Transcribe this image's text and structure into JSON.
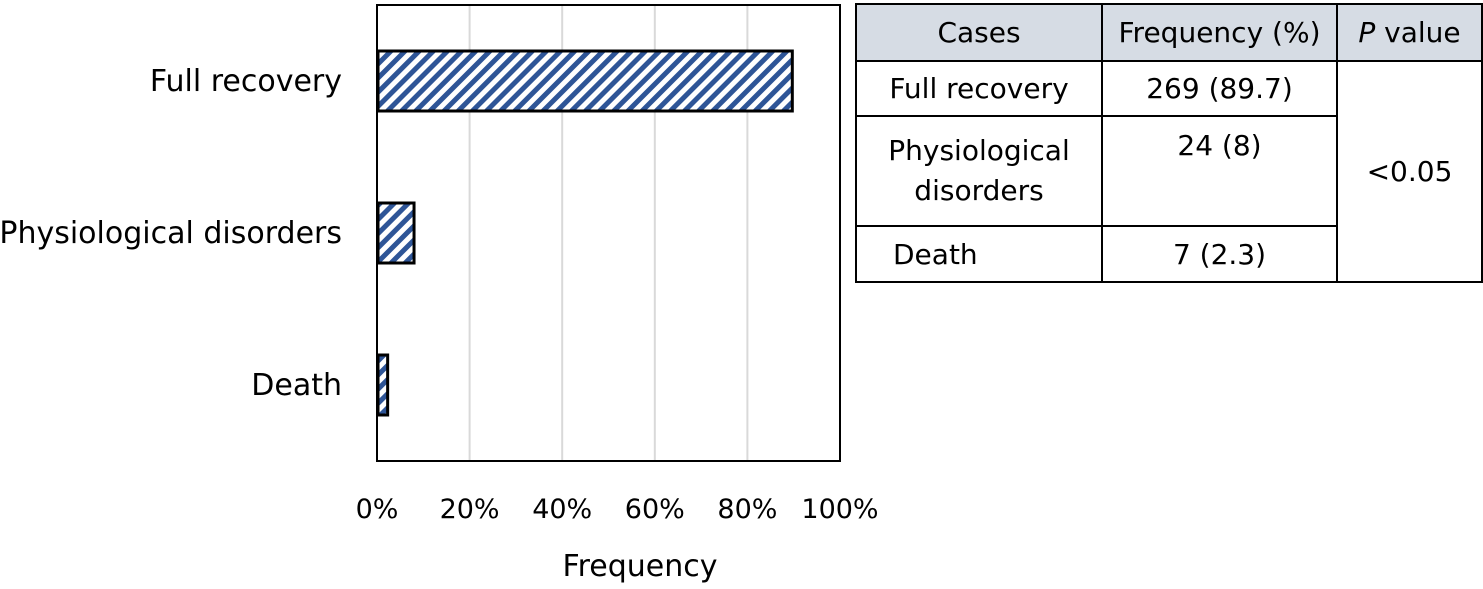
{
  "chart_data": {
    "type": "bar",
    "orientation": "horizontal",
    "categories": [
      "Full recovery",
      "Physiological disorders",
      "Death"
    ],
    "values": [
      89.7,
      8,
      2.3
    ],
    "xlabel": "Frequency",
    "ylabel": "",
    "xlim": [
      0,
      100
    ],
    "x_ticks": [
      "0%",
      "20%",
      "40%",
      "60%",
      "80%",
      "100%"
    ],
    "grid": "vertical",
    "bar_fill": "#2e5597",
    "bar_pattern": "diagonal hatch"
  },
  "table": {
    "headers": {
      "cases": "Cases",
      "frequency": "Frequency (%)",
      "p_italic": "P",
      "p_rest": " value"
    },
    "rows": [
      {
        "case": "Full recovery",
        "freq": "269 (89.7)"
      },
      {
        "case_line1": "Physiological",
        "case_line2": "disorders",
        "freq": "24 (8)"
      },
      {
        "case": "Death",
        "freq": "7 (2.3)"
      }
    ],
    "p_value": "<0.05",
    "header_bg": "#d6dce4"
  }
}
